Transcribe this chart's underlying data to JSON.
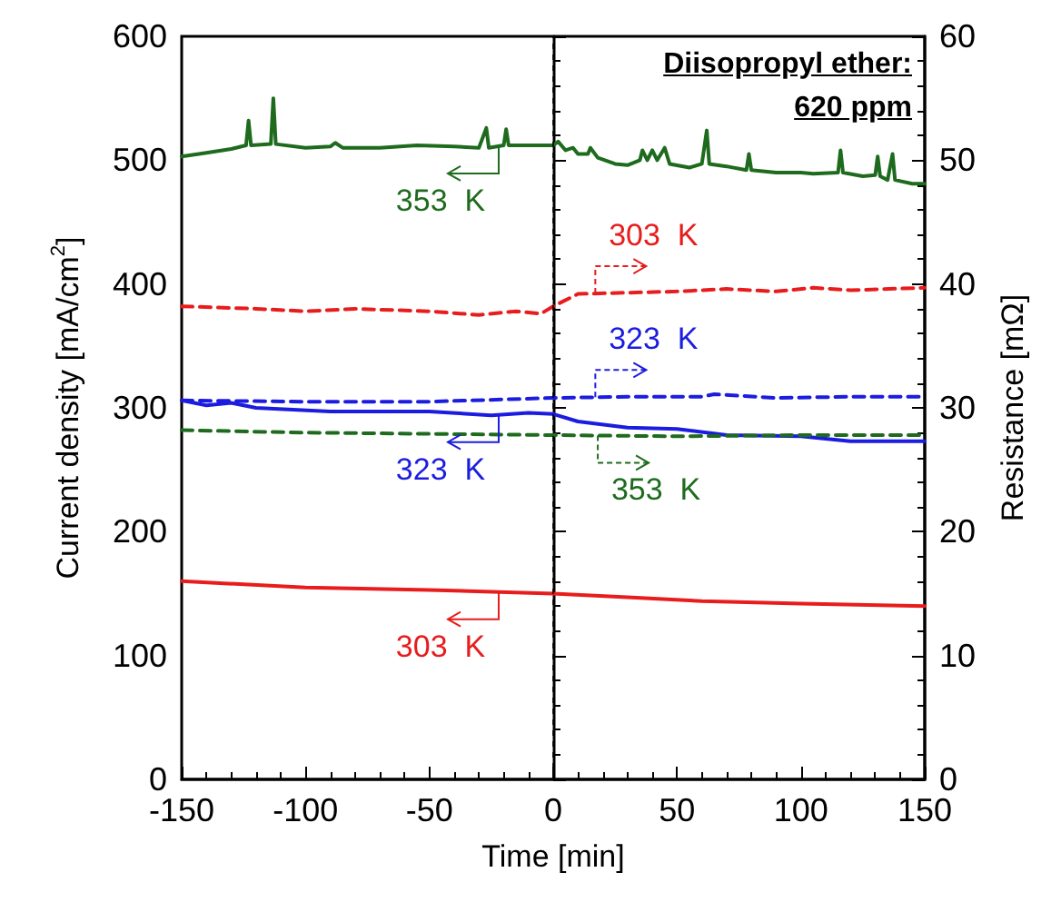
{
  "chart_data": {
    "type": "line",
    "xlabel": "Time [min]",
    "ylabel": "Current density [mA/cm$^{2}$]",
    "y2label": "Resistance [mΩ]",
    "xlim": [
      -150,
      150
    ],
    "xticks": [
      -150,
      -100,
      -50,
      0,
      50,
      100,
      150
    ],
    "ylim": [
      0,
      600
    ],
    "yticks": [
      0,
      100,
      200,
      300,
      400,
      500,
      600
    ],
    "y2lim": [
      0,
      60
    ],
    "y2ticks": [
      0,
      10,
      20,
      30,
      40,
      50,
      60
    ],
    "grid": false,
    "marker": "none",
    "ref_lines": [
      {
        "axis": "x",
        "value": 0,
        "color": "#000000",
        "line_style": "dashed"
      }
    ],
    "series": [
      {
        "color": "#1e6b1e",
        "line_style": "solid",
        "axis": "y",
        "x": [
          -150,
          -140,
          -130,
          -124,
          -123,
          -122,
          -114,
          -113,
          -112,
          -100,
          -90,
          -88,
          -85,
          -70,
          -55,
          -40,
          -30,
          -27,
          -26,
          -20,
          -19,
          -18,
          -10,
          0,
          2,
          5,
          8,
          10,
          14,
          15,
          18,
          25,
          30,
          35,
          36,
          38,
          40,
          42,
          45,
          47,
          55,
          60,
          62,
          63,
          70,
          78,
          79,
          80,
          90,
          100,
          105,
          115,
          116,
          117,
          125,
          130,
          131,
          132,
          135,
          137,
          138,
          145,
          150
        ],
        "values": [
          503,
          506,
          509,
          512,
          532,
          512,
          513,
          550,
          513,
          510,
          511,
          514,
          510,
          510,
          512,
          511,
          510,
          526,
          510,
          512,
          525,
          512,
          512,
          512,
          515,
          508,
          510,
          505,
          505,
          510,
          502,
          497,
          496,
          500,
          508,
          500,
          508,
          500,
          510,
          497,
          494,
          497,
          524,
          497,
          495,
          492,
          505,
          492,
          490,
          490,
          489,
          490,
          508,
          490,
          487,
          488,
          503,
          487,
          484,
          505,
          484,
          481,
          481
        ]
      },
      {
        "color": "#e81c1c",
        "line_style": "dashed",
        "axis": "y2",
        "x": [
          -150,
          -120,
          -100,
          -80,
          -50,
          -30,
          -15,
          -5,
          0,
          10,
          30,
          50,
          70,
          90,
          105,
          120,
          150
        ],
        "values": [
          38.2,
          38.0,
          37.8,
          38.0,
          37.8,
          37.5,
          37.8,
          37.6,
          38.2,
          39.2,
          39.3,
          39.4,
          39.6,
          39.4,
          39.7,
          39.5,
          39.7
        ]
      },
      {
        "color": "#1c1ce0",
        "line_style": "dashed",
        "axis": "y2",
        "x": [
          -150,
          -100,
          -50,
          0,
          30,
          60,
          65,
          90,
          120,
          150
        ],
        "values": [
          30.6,
          30.5,
          30.5,
          30.8,
          30.9,
          30.9,
          31.1,
          30.8,
          30.9,
          30.9
        ]
      },
      {
        "color": "#1c1ce0",
        "line_style": "solid",
        "axis": "y",
        "x": [
          -150,
          -140,
          -130,
          -120,
          -90,
          -50,
          -25,
          -10,
          0,
          10,
          30,
          50,
          70,
          100,
          120,
          150
        ],
        "values": [
          306,
          302,
          304,
          300,
          297,
          297,
          294,
          296,
          295,
          289,
          284,
          283,
          278,
          277,
          273,
          273
        ]
      },
      {
        "color": "#1e6b1e",
        "line_style": "dashed",
        "axis": "y2",
        "x": [
          -150,
          -100,
          -50,
          0,
          50,
          100,
          150
        ],
        "values": [
          28.2,
          28.0,
          27.9,
          27.8,
          27.7,
          27.8,
          27.8
        ]
      },
      {
        "color": "#e81c1c",
        "line_style": "solid",
        "axis": "y",
        "x": [
          -150,
          -100,
          -50,
          0,
          30,
          60,
          100,
          150
        ],
        "values": [
          160,
          155,
          153,
          150,
          147,
          144,
          142,
          140
        ]
      }
    ],
    "annotations": [
      "Diisopropyl ether:\n620 ppm",
      {
        "text": "353  K",
        "x": -22,
        "y": 512
      },
      {
        "text": "303  K",
        "x": 17,
        "y": 392
      },
      {
        "text": "323  K",
        "x": 17,
        "y": 309
      },
      {
        "text": "323  K",
        "x": -22,
        "y": 294
      },
      {
        "text": "353  K",
        "x": 18,
        "y": 277
      },
      {
        "text": "303  K",
        "x": -22,
        "y": 152
      }
    ]
  }
}
